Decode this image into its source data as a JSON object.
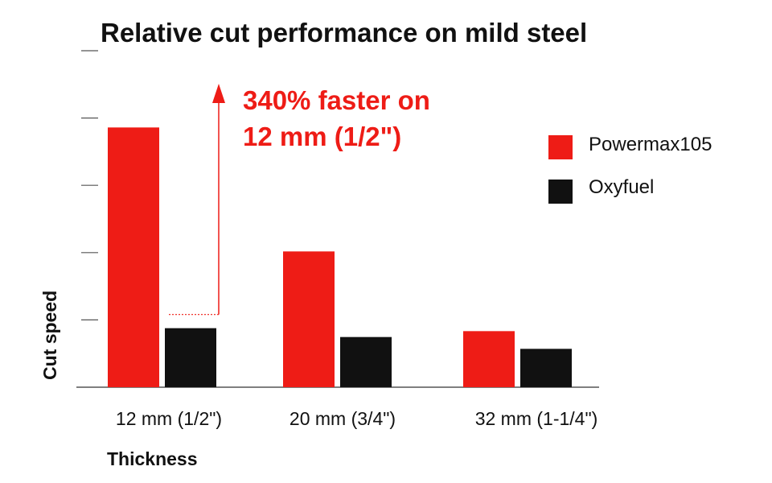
{
  "chart_data": {
    "type": "bar",
    "title": "Relative cut performance on mild steel",
    "xlabel": "Thickness",
    "ylabel": "Cut speed",
    "categories": [
      "12 mm (1/2\")",
      "20 mm (3/4\")",
      "32 mm (1-1/4\")"
    ],
    "series": [
      {
        "name": "Powermax105",
        "color": "#ee1c16",
        "values": [
          4.4,
          2.3,
          0.95
        ]
      },
      {
        "name": "Oxyfuel",
        "color": "#111111",
        "values": [
          1.0,
          0.85,
          0.65
        ]
      }
    ],
    "ylim": [
      0,
      5.7
    ],
    "y_tick_count": 6,
    "y_tick_labels_shown": false,
    "grid": false,
    "legend_position": "right",
    "annotation": {
      "lines": [
        "340% faster on",
        "12 mm (1/2\")"
      ],
      "color": "#ee1c16",
      "category": "12 mm (1/2\")"
    }
  }
}
